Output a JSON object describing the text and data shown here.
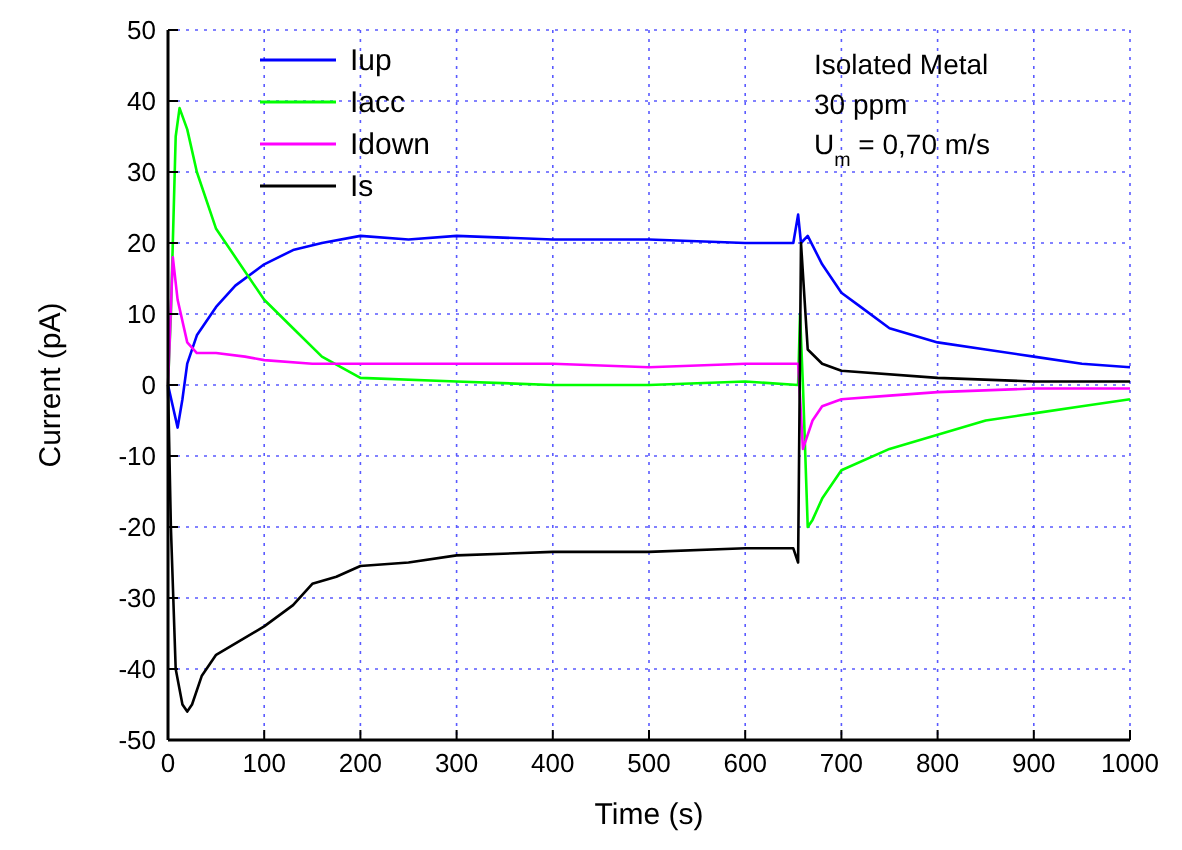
{
  "chart_data": {
    "type": "line",
    "xlabel": "Time (s)",
    "ylabel": "Current (pA)",
    "xlim": [
      0,
      1000
    ],
    "xticks": [
      0,
      100,
      200,
      300,
      400,
      500,
      600,
      700,
      800,
      900,
      1000
    ],
    "ylim": [
      -50,
      50
    ],
    "yticks": [
      -50,
      -40,
      -30,
      -20,
      -10,
      0,
      10,
      20,
      30,
      40,
      50
    ],
    "grid": true,
    "legend": "top left",
    "marker": "none",
    "line_style": "solid",
    "annotations": [
      "Isolated Metal",
      "30 ppm",
      "U$_{m}$ = 0,70 m/s"
    ],
    "series": [
      {
        "name": "Iup",
        "color": "#0000ff",
        "x": [
          0,
          5,
          10,
          15,
          20,
          30,
          50,
          70,
          100,
          130,
          160,
          200,
          250,
          300,
          400,
          500,
          600,
          650,
          655,
          658,
          665,
          680,
          700,
          720,
          750,
          800,
          850,
          900,
          950,
          1000
        ],
        "values": [
          0,
          -3,
          -6,
          -2,
          3,
          7,
          11,
          14,
          17,
          19,
          20,
          21,
          20.5,
          21,
          20.5,
          20.5,
          20,
          20,
          24,
          20,
          21,
          17,
          13,
          11,
          8,
          6,
          5,
          4,
          3,
          2.5
        ]
      },
      {
        "name": "Iacc",
        "color": "#00ff00",
        "x": [
          0,
          3,
          8,
          12,
          20,
          30,
          50,
          70,
          100,
          130,
          160,
          200,
          300,
          400,
          500,
          600,
          655,
          657,
          660,
          665,
          670,
          680,
          700,
          750,
          800,
          850,
          900,
          950,
          1000
        ],
        "values": [
          0,
          10,
          35,
          39,
          36,
          30,
          22,
          18,
          12,
          8,
          4,
          1,
          0.5,
          0,
          0,
          0.5,
          0,
          10,
          0,
          -20,
          -19,
          -16,
          -12,
          -9,
          -7,
          -5,
          -4,
          -3,
          -2
        ]
      },
      {
        "name": "Idown",
        "color": "#ff00ff",
        "x": [
          0,
          5,
          10,
          20,
          30,
          50,
          80,
          100,
          150,
          200,
          300,
          400,
          500,
          600,
          655,
          660,
          670,
          680,
          700,
          750,
          800,
          900,
          1000
        ],
        "values": [
          0,
          18,
          12,
          6,
          4.5,
          4.5,
          4,
          3.5,
          3,
          3,
          3,
          3,
          2.5,
          3,
          3,
          -9,
          -5,
          -3,
          -2,
          -1.5,
          -1,
          -0.5,
          -0.5
        ]
      },
      {
        "name": "Is",
        "color": "#000000",
        "x": [
          0,
          3,
          8,
          15,
          20,
          25,
          35,
          50,
          75,
          100,
          130,
          150,
          175,
          200,
          250,
          300,
          400,
          500,
          600,
          650,
          655,
          658,
          665,
          680,
          700,
          800,
          900,
          1000
        ],
        "values": [
          0,
          -20,
          -40,
          -45,
          -46,
          -45,
          -41,
          -38,
          -36,
          -34,
          -31,
          -28,
          -27,
          -25.5,
          -25,
          -24,
          -23.5,
          -23.5,
          -23,
          -23,
          -25,
          20,
          5,
          3,
          2,
          1,
          0.5,
          0.5
        ]
      }
    ]
  }
}
